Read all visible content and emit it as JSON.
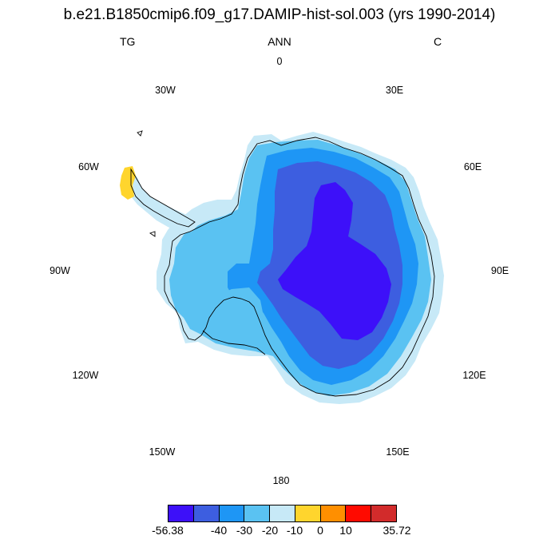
{
  "title": "b.e21.B1850cmip6.f09_g17.DAMIP-hist-sol.003 (yrs 1990-2014)",
  "subtitle_left": "TG",
  "subtitle_center": "ANN",
  "subtitle_right": "C",
  "longitude_labels": {
    "lon_0": "0",
    "lon_30e": "30E",
    "lon_60e": "60E",
    "lon_90e": "90E",
    "lon_120e": "120E",
    "lon_150e": "150E",
    "lon_180": "180",
    "lon_150w": "150W",
    "lon_120w": "120W",
    "lon_90w": "90W",
    "lon_60w": "60W",
    "lon_30w": "30W"
  },
  "colorbar": {
    "colors": [
      "#3d10f9",
      "#3d5ee0",
      "#1e96f5",
      "#5ac2f2",
      "#c7e9f7",
      "#ffd52d",
      "#ff8f00",
      "#ff0a00",
      "#d22b2b"
    ],
    "labels": {
      "min": "-56.38",
      "l1": "-40",
      "l2": "-30",
      "l3": "-20",
      "l4": "-10",
      "l5": "0",
      "l6": "10",
      "max": "35.72"
    }
  },
  "chart_data": {
    "type": "heatmap",
    "title": "b.e21.B1850cmip6.f09_g17.DAMIP-hist-sol.003 (yrs 1990-2014)",
    "left_label": "TG",
    "center_label": "ANN",
    "right_label": "C",
    "projection": "south polar stereographic",
    "region": "Antarctica",
    "value_range": [
      -56.38,
      35.72
    ],
    "contour_levels": [
      -40,
      -30,
      -20,
      -10,
      0,
      10
    ],
    "regions": [
      {
        "area": "East Antarctic plateau interior",
        "range": [
          -56.38,
          -40
        ]
      },
      {
        "area": "East Antarctic plateau surrounding ring",
        "range": [
          -40,
          -30
        ]
      },
      {
        "area": "Interior slopes / West Antarctic interior",
        "range": [
          -30,
          -20
        ]
      },
      {
        "area": "West Antarctica, ice shelves and inner coast",
        "range": [
          -20,
          -10
        ]
      },
      {
        "area": "Coastal margins",
        "range": [
          -10,
          0
        ]
      },
      {
        "area": "Antarctic Peninsula tip",
        "range": [
          0,
          10
        ]
      }
    ]
  }
}
